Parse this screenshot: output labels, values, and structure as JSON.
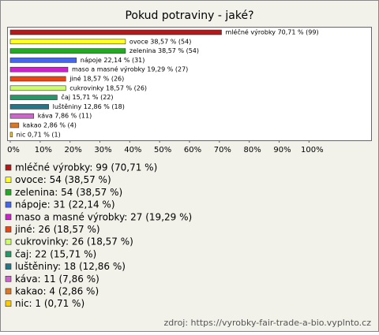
{
  "chart_data": {
    "type": "bar",
    "orientation": "horizontal",
    "title": "Pokud potraviny - jaké?",
    "categories": [
      "mléčné výrobky",
      "ovoce",
      "zelenina",
      "nápoje",
      "maso a masné výrobky",
      "jiné",
      "cukrovinky",
      "čaj",
      "luštěniny",
      "káva",
      "kakao",
      "nic"
    ],
    "values": [
      70.71,
      38.57,
      38.57,
      22.14,
      19.29,
      18.57,
      18.57,
      15.71,
      12.86,
      7.86,
      2.86,
      0.71
    ],
    "value_labels": [
      "mléčné výrobky 70,71 % (99)",
      "ovoce 38,57 % (54)",
      "zelenina 38,57 % (54)",
      "nápoje 22,14 % (31)",
      "maso a masné výrobky 19,29 % (27)",
      "jiné 18,57 % (26)",
      "cukrovinky 18,57 % (26)",
      "čaj 15,71 % (22)",
      "luštěniny 12,86 % (18)",
      "káva 7,86 % (11)",
      "kakao 2,86 % (4)",
      "nic 0,71 % (1)"
    ],
    "legend_labels": [
      "mléčné výrobky: 99 (70,71 %)",
      "ovoce: 54 (38,57 %)",
      "zelenina: 54 (38,57 %)",
      "nápoje: 31 (22,14 %)",
      "maso a masné výrobky: 27 (19,29 %)",
      "jiné: 26 (18,57 %)",
      "cukrovinky: 26 (18,57 %)",
      "čaj: 22 (15,71 %)",
      "luštěniny: 18 (12,86 %)",
      "káva: 11 (7,86 %)",
      "kakao: 4 (2,86 %)",
      "nic: 1 (0,71 %)"
    ],
    "colors": [
      "#b41818",
      "#ffff22",
      "#22aa22",
      "#4466ee",
      "#cc22cc",
      "#ee4411",
      "#ccff66",
      "#229966",
      "#227788",
      "#cc66cc",
      "#dd7722",
      "#ffcc00"
    ],
    "xlim": [
      0,
      120
    ],
    "xticks": [
      {
        "value": 0,
        "label": "0%"
      },
      {
        "value": 10,
        "label": "10%"
      },
      {
        "value": 20,
        "label": "20%"
      },
      {
        "value": 30,
        "label": "30%"
      },
      {
        "value": 40,
        "label": "40%"
      },
      {
        "value": 50,
        "label": "50%"
      },
      {
        "value": 60,
        "label": "60%"
      },
      {
        "value": 70,
        "label": "70%"
      },
      {
        "value": 80,
        "label": "80%"
      },
      {
        "value": 90,
        "label": "90%"
      },
      {
        "value": 100,
        "label": "100%"
      }
    ],
    "source": "zdroj: https://vyrobky-fair-trade-a-bio.vyplnto.cz"
  }
}
